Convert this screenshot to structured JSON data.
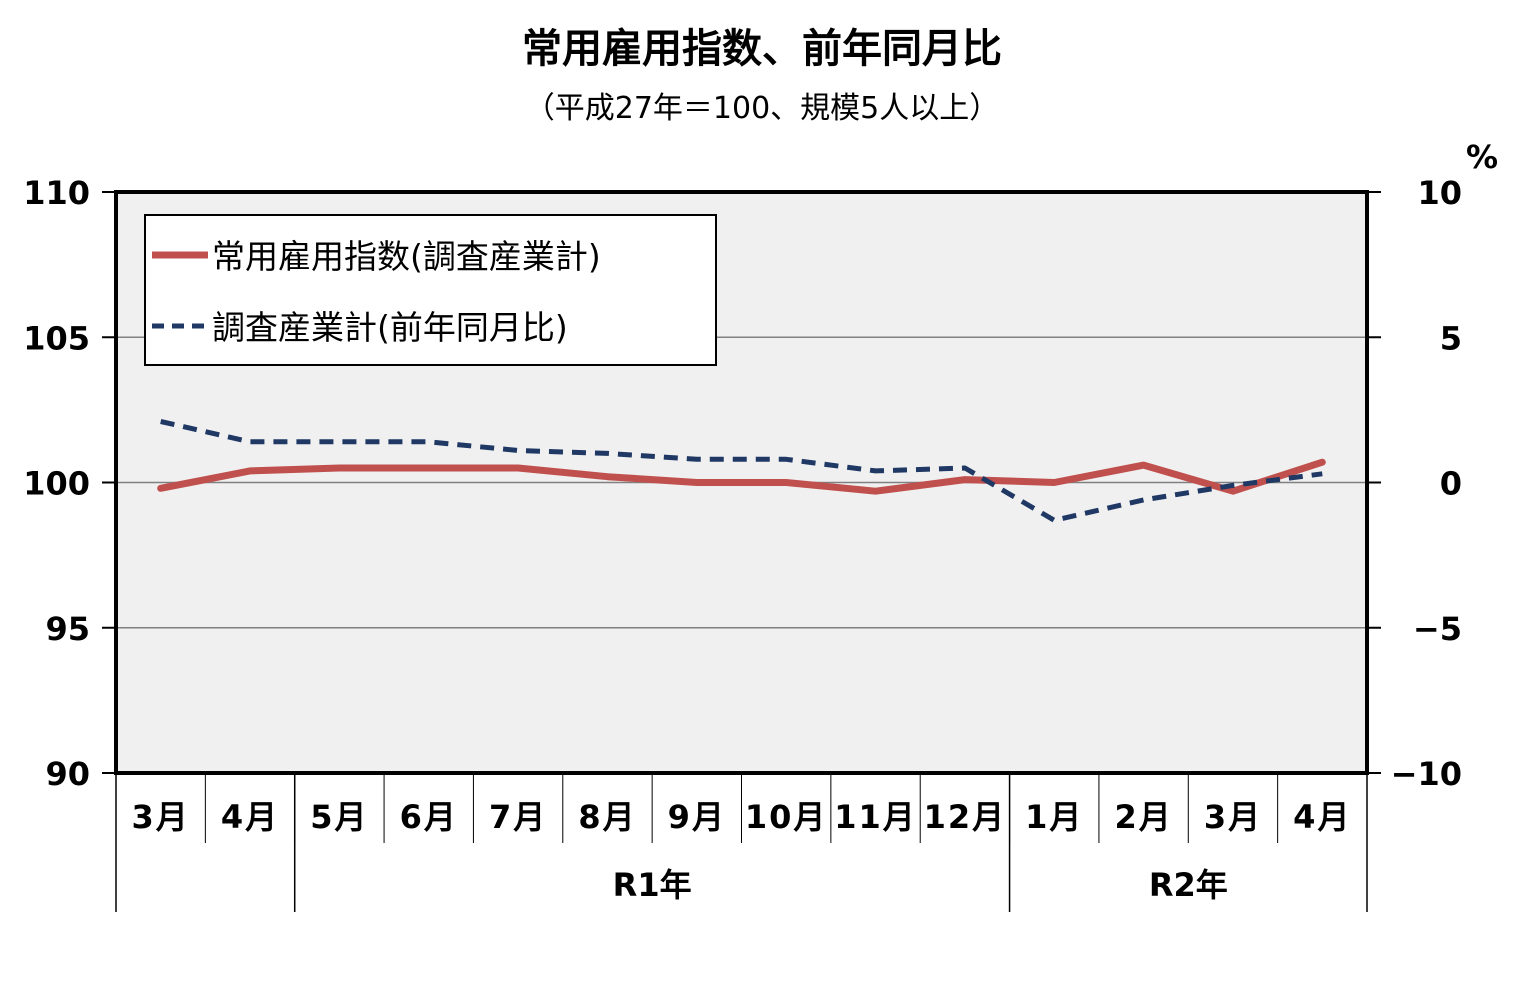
{
  "chart_data": {
    "type": "line",
    "title": "常用雇用指数、前年同月比",
    "subtitle": "（平成27年＝100、規模5人以上）",
    "categories": [
      "3月",
      "4月",
      "5月",
      "6月",
      "7月",
      "8月",
      "9月",
      "10月",
      "11月",
      "12月",
      "1月",
      "2月",
      "3月",
      "4月"
    ],
    "year_groups": [
      {
        "label": "",
        "span": 2
      },
      {
        "label": "R1年",
        "span": 8
      },
      {
        "label": "R2年",
        "span": 4
      }
    ],
    "y_left": {
      "min": 90,
      "max": 110,
      "ticks": [
        90,
        95,
        100,
        105,
        110
      ]
    },
    "y_right": {
      "unit": "%",
      "min": -10,
      "max": 10,
      "ticks": [
        -10,
        -5,
        0,
        5,
        10
      ],
      "tick_labels": [
        "−10",
        "−5",
        "0",
        "5",
        "10"
      ]
    },
    "grid": true,
    "legend_position": "top-left",
    "series": [
      {
        "name": "常用雇用指数(調査産業計)",
        "axis": "left",
        "style": "solid",
        "color": "#c0504d",
        "values": [
          99.8,
          100.4,
          100.5,
          100.5,
          100.5,
          100.2,
          100.0,
          100.0,
          99.7,
          100.1,
          100.0,
          100.6,
          99.7,
          100.7
        ]
      },
      {
        "name": "調査産業計(前年同月比)",
        "axis": "right",
        "style": "dashed",
        "color": "#1f3864",
        "values": [
          2.1,
          1.4,
          1.4,
          1.4,
          1.1,
          1.0,
          0.8,
          0.8,
          0.4,
          0.5,
          -1.3,
          -0.6,
          -0.1,
          0.3
        ]
      }
    ]
  }
}
